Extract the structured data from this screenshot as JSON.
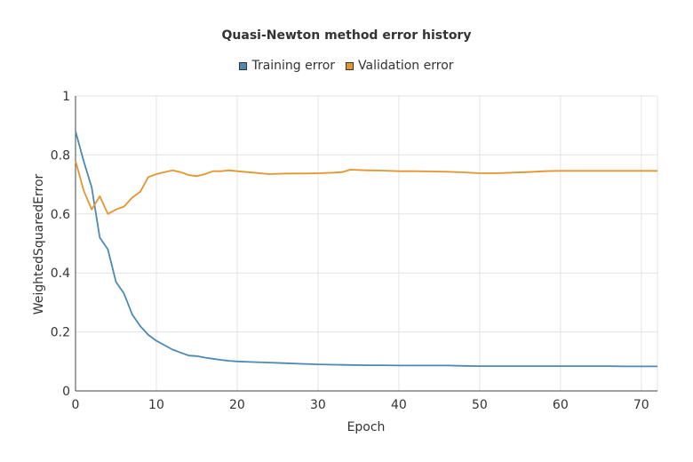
{
  "chart_data": {
    "type": "line",
    "title": "Quasi-Newton method error history",
    "xlabel": "Epoch",
    "ylabel": "WeightedSquaredError",
    "xlim": [
      0,
      72
    ],
    "ylim": [
      0,
      1
    ],
    "xticks": [
      0,
      10,
      20,
      30,
      40,
      50,
      60,
      70
    ],
    "yticks": [
      0,
      0.2,
      0.4,
      0.6,
      0.8,
      1
    ],
    "ytick_labels": [
      "0",
      "0.2",
      "0.4",
      "0.6",
      "0.8",
      "1"
    ],
    "grid": true,
    "legend_position": "top",
    "series": [
      {
        "name": "Training error",
        "color": "#4b8ab5",
        "x": [
          0,
          1,
          2,
          3,
          4,
          5,
          6,
          7,
          8,
          9,
          10,
          11,
          12,
          13,
          14,
          15,
          16,
          17,
          18,
          19,
          20,
          22,
          24,
          26,
          28,
          30,
          32,
          34,
          36,
          38,
          40,
          42,
          44,
          46,
          48,
          50,
          52,
          54,
          56,
          58,
          60,
          62,
          64,
          66,
          68,
          70,
          72
        ],
        "y": [
          0.88,
          0.78,
          0.69,
          0.52,
          0.48,
          0.37,
          0.33,
          0.26,
          0.22,
          0.19,
          0.17,
          0.155,
          0.14,
          0.13,
          0.12,
          0.118,
          0.113,
          0.109,
          0.105,
          0.102,
          0.1,
          0.098,
          0.096,
          0.094,
          0.092,
          0.09,
          0.089,
          0.088,
          0.087,
          0.087,
          0.086,
          0.086,
          0.086,
          0.086,
          0.085,
          0.084,
          0.084,
          0.084,
          0.084,
          0.084,
          0.084,
          0.084,
          0.084,
          0.084,
          0.083,
          0.083,
          0.083
        ]
      },
      {
        "name": "Validation error",
        "color": "#e6952e",
        "x": [
          0,
          1,
          2,
          3,
          4,
          5,
          6,
          7,
          8,
          9,
          10,
          11,
          12,
          13,
          14,
          15,
          16,
          17,
          18,
          19,
          20,
          22,
          24,
          26,
          28,
          30,
          32,
          33,
          34,
          36,
          38,
          40,
          42,
          44,
          46,
          48,
          50,
          52,
          54,
          56,
          58,
          60,
          62,
          64,
          66,
          68,
          70,
          72
        ],
        "y": [
          0.78,
          0.68,
          0.615,
          0.66,
          0.6,
          0.615,
          0.625,
          0.655,
          0.675,
          0.725,
          0.735,
          0.742,
          0.748,
          0.742,
          0.732,
          0.728,
          0.735,
          0.745,
          0.745,
          0.748,
          0.745,
          0.74,
          0.735,
          0.737,
          0.737,
          0.738,
          0.74,
          0.742,
          0.75,
          0.748,
          0.747,
          0.745,
          0.745,
          0.744,
          0.743,
          0.741,
          0.738,
          0.738,
          0.74,
          0.742,
          0.745,
          0.746,
          0.746,
          0.746,
          0.746,
          0.746,
          0.746,
          0.746
        ]
      }
    ]
  }
}
